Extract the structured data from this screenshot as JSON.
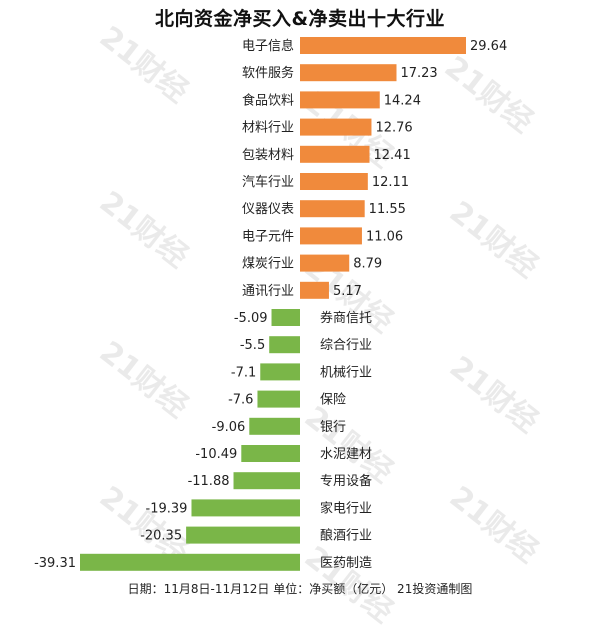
{
  "title": "北向资金净买入&净卖出十大行业",
  "footer": "日期：11月8日-11月12日 单位：净买额（亿元） 21投资通制图",
  "watermark": "21财经",
  "colors": {
    "positive": "#f08a3c",
    "negative": "#7ab648"
  },
  "chart_data": {
    "type": "bar",
    "orientation": "horizontal",
    "title": "北向资金净买入&净卖出十大行业",
    "categories": [
      "电子信息",
      "软件服务",
      "食品饮料",
      "材料行业",
      "包装材料",
      "汽车行业",
      "仪器仪表",
      "电子元件",
      "煤炭行业",
      "通讯行业",
      "券商信托",
      "综合行业",
      "机械行业",
      "保险",
      "银行",
      "水泥建材",
      "专用设备",
      "家电行业",
      "酿酒行业",
      "医药制造"
    ],
    "values": [
      29.64,
      17.23,
      14.24,
      12.76,
      12.41,
      12.11,
      11.55,
      11.06,
      8.79,
      5.17,
      -5.09,
      -5.5,
      -7.1,
      -7.6,
      -9.06,
      -10.49,
      -11.88,
      -19.39,
      -20.35,
      -39.31
    ],
    "value_labels": [
      "29.64",
      "17.23",
      "14.24",
      "12.76",
      "12.41",
      "12.11",
      "11.55",
      "11.06",
      "8.79",
      "5.17",
      "-5.09",
      "-5.5",
      "-7.1",
      "-7.6",
      "-9.06",
      "-10.49",
      "-11.88",
      "-19.39",
      "-20.35",
      "-39.31"
    ],
    "xlim": [
      -39.31,
      29.64
    ],
    "grid": false,
    "legend": "none"
  }
}
